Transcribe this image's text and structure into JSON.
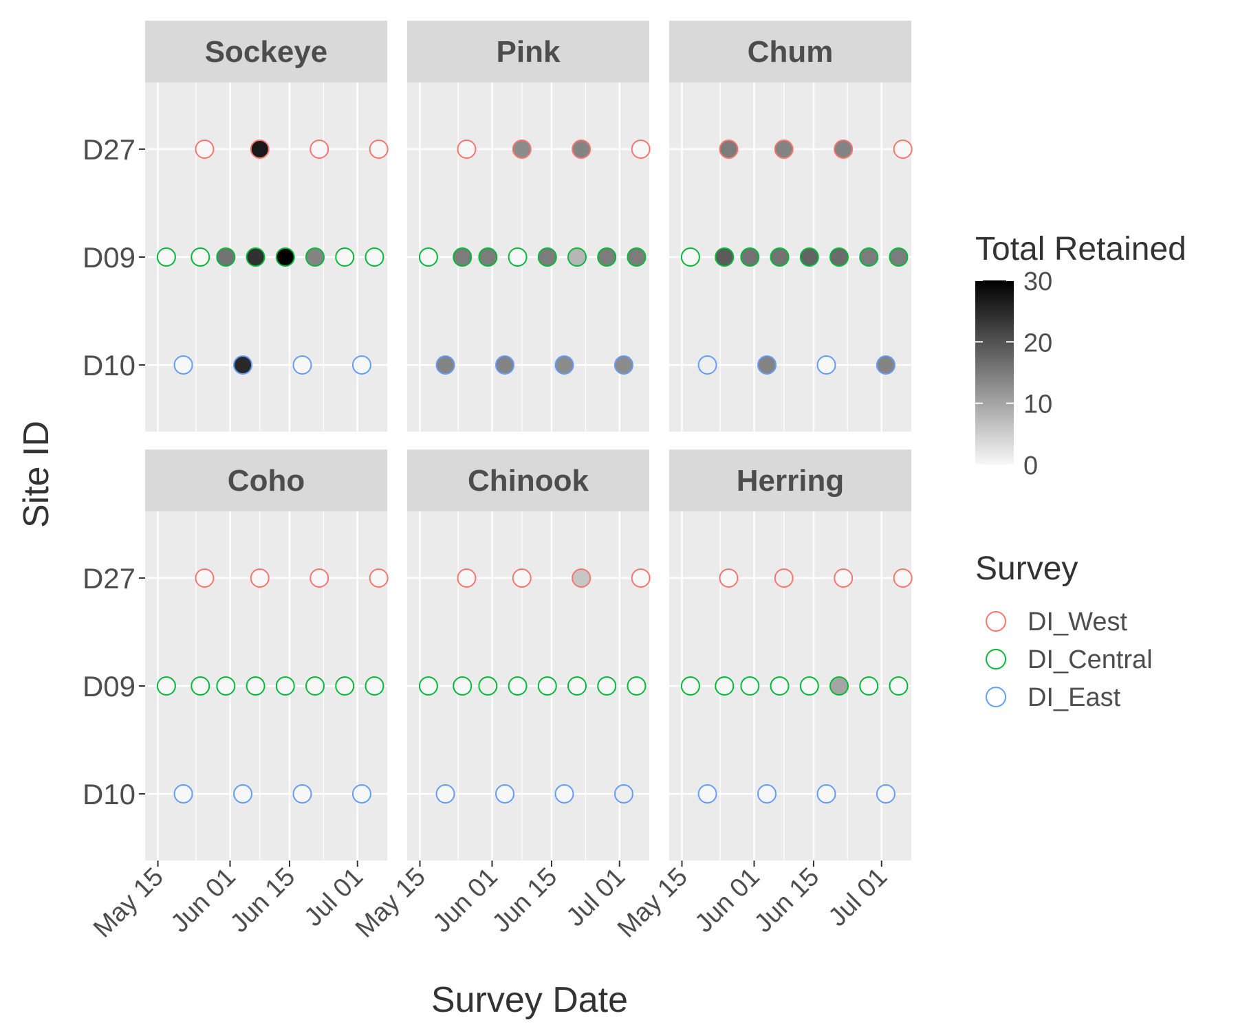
{
  "chart_data": {
    "type": "scatter",
    "xlabel": "Survey Date",
    "ylabel": "Site ID",
    "x_ticks": [
      "May 15",
      "Jun 01",
      "Jun 15",
      "Jul 01"
    ],
    "x_tick_dates": [
      "2019-05-15",
      "2019-06-01",
      "2019-06-15",
      "2019-07-01"
    ],
    "xlim": [
      "2019-05-12",
      "2019-07-08"
    ],
    "y_categories": [
      "D10",
      "D09",
      "D27"
    ],
    "color_legend": {
      "title": "Total Retained",
      "ticks": [
        0,
        10,
        20,
        30
      ],
      "range": [
        0,
        30
      ],
      "low_color": "#F7F7F7",
      "high_color": "#000000"
    },
    "survey_legend": {
      "title": "Survey",
      "entries": [
        {
          "label": "DI_West",
          "color": "#F8766D"
        },
        {
          "label": "DI_Central",
          "color": "#00BA38"
        },
        {
          "label": "DI_East",
          "color": "#619CFF"
        }
      ]
    },
    "sites": {
      "D27": {
        "survey": "DI_West",
        "dates": [
          "2019-05-26",
          "2019-06-08",
          "2019-06-22",
          "2019-07-06"
        ]
      },
      "D09": {
        "survey": "DI_Central",
        "dates": [
          "2019-05-17",
          "2019-05-25",
          "2019-05-31",
          "2019-06-07",
          "2019-06-14",
          "2019-06-21",
          "2019-06-28",
          "2019-07-05"
        ]
      },
      "D10": {
        "survey": "DI_East",
        "dates": [
          "2019-05-21",
          "2019-06-04",
          "2019-06-18",
          "2019-07-02"
        ]
      }
    },
    "facets": [
      {
        "species": "Sockeye",
        "values": {
          "D27": [
            0,
            27,
            0,
            0
          ],
          "D09": [
            0,
            0,
            16,
            24,
            30,
            14,
            0,
            0
          ],
          "D10": [
            0,
            25,
            0,
            0
          ]
        }
      },
      {
        "species": "Pink",
        "values": {
          "D27": [
            0,
            13,
            14,
            0
          ],
          "D09": [
            0,
            15,
            15,
            0,
            15,
            8,
            15,
            15
          ],
          "D10": [
            14,
            14,
            13,
            13
          ]
        }
      },
      {
        "species": "Chum",
        "values": {
          "D27": [
            15,
            14,
            14,
            0
          ],
          "D09": [
            0,
            19,
            16,
            16,
            18,
            17,
            15,
            15
          ],
          "D10": [
            1,
            14,
            0,
            14
          ]
        }
      },
      {
        "species": "Coho",
        "values": {
          "D27": [
            0,
            0,
            0,
            0
          ],
          "D09": [
            0,
            0,
            0,
            0,
            0,
            0,
            0,
            0
          ],
          "D10": [
            0,
            0,
            0,
            0
          ]
        }
      },
      {
        "species": "Chinook",
        "values": {
          "D27": [
            0,
            0,
            6,
            0
          ],
          "D09": [
            0,
            0,
            1,
            0,
            0,
            0,
            0,
            0
          ],
          "D10": [
            0,
            0,
            0,
            1
          ]
        }
      },
      {
        "species": "Herring",
        "values": {
          "D27": [
            0,
            1,
            0,
            0
          ],
          "D09": [
            0,
            0,
            0,
            0,
            0,
            10,
            0,
            0
          ],
          "D10": [
            0,
            0,
            0,
            0
          ]
        }
      }
    ]
  }
}
